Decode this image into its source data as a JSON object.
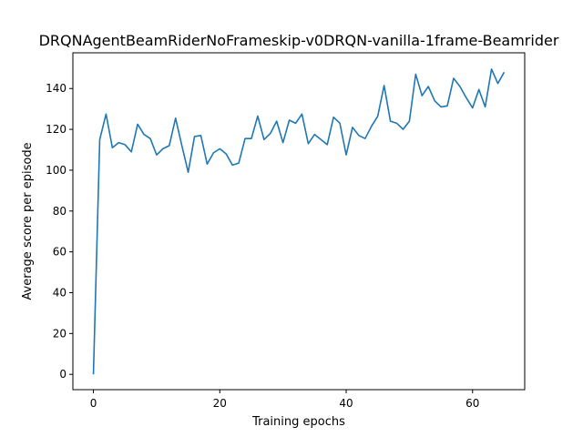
{
  "chart_data": {
    "type": "line",
    "title": "DRQNAgentBeamRiderNoFrameskip-v0DRQN-vanilla-1frame-Beamrider",
    "xlabel": "Training epochs",
    "ylabel": "Average score per episode",
    "xlim": [
      -3.25,
      68.25
    ],
    "ylim": [
      -7.5,
      157.5
    ],
    "xticks": [
      0,
      20,
      40,
      60
    ],
    "yticks": [
      0,
      20,
      40,
      60,
      80,
      100,
      120,
      140
    ],
    "grid": false,
    "line_color": "#1f77b4",
    "series": [
      {
        "x": [
          0,
          1,
          2,
          3,
          4,
          5,
          6,
          7,
          8,
          9,
          10,
          11,
          12,
          13,
          14,
          15,
          16,
          17,
          18,
          19,
          20,
          21,
          22,
          23,
          24,
          25,
          26,
          27,
          28,
          29,
          30,
          31,
          32,
          33,
          34,
          35,
          36,
          37,
          38,
          39,
          40,
          41,
          42,
          43,
          44,
          45,
          46,
          47,
          48,
          49,
          50,
          51,
          52,
          53,
          54,
          55,
          56,
          57,
          58,
          59,
          60,
          61,
          62,
          63,
          64,
          65
        ],
        "values": [
          0,
          115,
          127.5,
          111,
          113.5,
          112.5,
          109,
          122.5,
          117.5,
          115.5,
          107.5,
          110.5,
          112,
          125.5,
          112,
          99,
          116.5,
          117,
          103,
          108.5,
          110.5,
          108,
          102.5,
          103.5,
          115.5,
          115.5,
          126.5,
          115,
          118,
          124,
          113.5,
          124.5,
          123,
          127.5,
          113,
          117.5,
          115,
          112.5,
          126,
          123,
          107.5,
          121,
          117,
          115.5,
          121.5,
          126.5,
          141.5,
          124,
          123,
          120,
          124,
          147,
          136.5,
          141,
          134,
          131,
          131.5,
          145,
          141,
          135.5,
          130.5,
          139.5,
          131,
          149.5,
          142.5,
          148
        ]
      }
    ]
  }
}
